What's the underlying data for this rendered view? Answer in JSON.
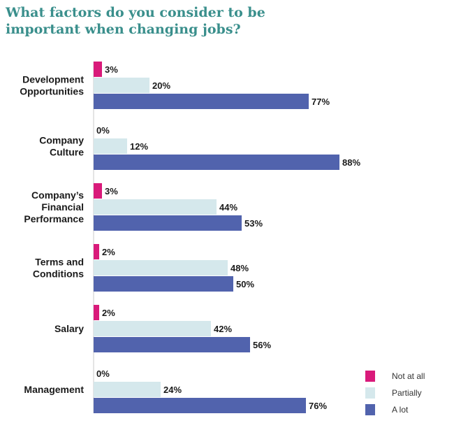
{
  "chart_data": {
    "type": "bar",
    "orientation": "horizontal",
    "title_lines": [
      "What factors do you consider to be",
      "important when changing jobs?"
    ],
    "categories": [
      [
        "Development",
        "Opportunities"
      ],
      [
        "Company",
        "Culture"
      ],
      [
        "Company’s",
        "Financial",
        "Performance"
      ],
      [
        "Terms and",
        "Conditions"
      ],
      [
        "Salary"
      ],
      [
        "Management"
      ]
    ],
    "series": [
      {
        "name": "Not at all",
        "color": "#d91a7a",
        "values": [
          3,
          0,
          3,
          2,
          2,
          0
        ]
      },
      {
        "name": "Partially",
        "color": "#d5e8ec",
        "values": [
          20,
          12,
          44,
          48,
          42,
          24
        ]
      },
      {
        "name": "A lot",
        "color": "#5163ad",
        "values": [
          77,
          88,
          53,
          50,
          56,
          76
        ]
      }
    ],
    "value_suffix": "%",
    "xlim": [
      0,
      100
    ],
    "grid": false,
    "legend_position": "bottom-right"
  }
}
